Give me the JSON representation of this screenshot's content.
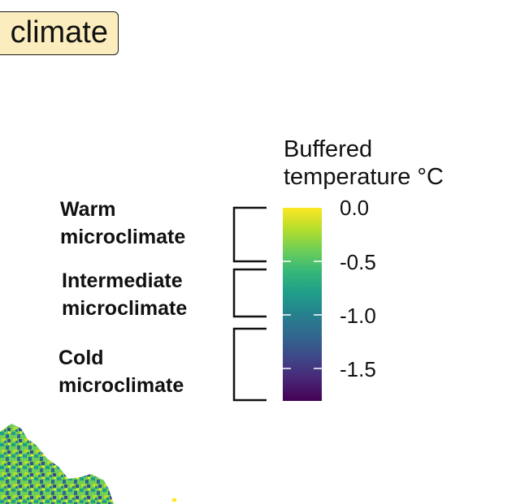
{
  "title": {
    "text": "climate"
  },
  "legend": {
    "title_line1": "Buffered",
    "title_line2": "temperature °C",
    "ticks": [
      "0.0",
      "-0.5",
      "-1.0",
      "-1.5"
    ],
    "colormap": [
      "#fde725",
      "#b5de2b",
      "#6ece58",
      "#35b779",
      "#1f9e89",
      "#26828e",
      "#31688e",
      "#3e4989",
      "#482878",
      "#440154"
    ]
  },
  "zones": [
    {
      "line1": "Warm",
      "line2": "microclimate"
    },
    {
      "line1": "Intermediate",
      "line2": "microclimate"
    },
    {
      "line1": "Cold",
      "line2": "microclimate"
    }
  ]
}
